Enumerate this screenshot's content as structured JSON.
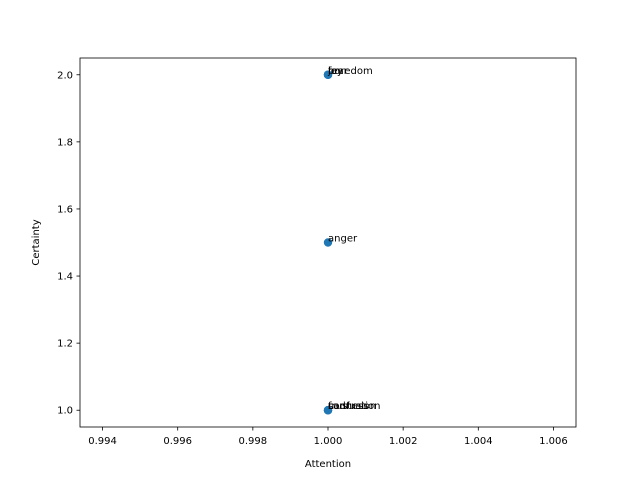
{
  "chart_data": {
    "type": "scatter",
    "title": "",
    "xlabel": "Attention",
    "ylabel": "Certainty",
    "xlim": [
      0.9934,
      1.0066
    ],
    "ylim": [
      0.95,
      2.05
    ],
    "xticks": [
      0.994,
      0.996,
      0.998,
      1.0,
      1.002,
      1.004,
      1.006
    ],
    "xtick_labels": [
      "0.994",
      "0.996",
      "0.998",
      "1.000",
      "1.002",
      "1.004",
      "1.006"
    ],
    "yticks": [
      1.0,
      1.2,
      1.4,
      1.6,
      1.8,
      2.0
    ],
    "ytick_labels": [
      "1.0",
      "1.2",
      "1.4",
      "1.6",
      "1.8",
      "2.0"
    ],
    "grid": false,
    "marker_color": "#1f77b4",
    "points": [
      {
        "label": "joy",
        "x": 1.0,
        "y": 2.0
      },
      {
        "label": "fear",
        "x": 1.0,
        "y": 2.0
      },
      {
        "label": "boredom",
        "x": 1.0,
        "y": 2.0
      },
      {
        "label": "anger",
        "x": 1.0,
        "y": 1.5
      },
      {
        "label": "sadness",
        "x": 1.0,
        "y": 1.0
      },
      {
        "label": "frustration",
        "x": 1.0,
        "y": 1.0
      },
      {
        "label": "confusion",
        "x": 1.0,
        "y": 1.0
      }
    ]
  }
}
